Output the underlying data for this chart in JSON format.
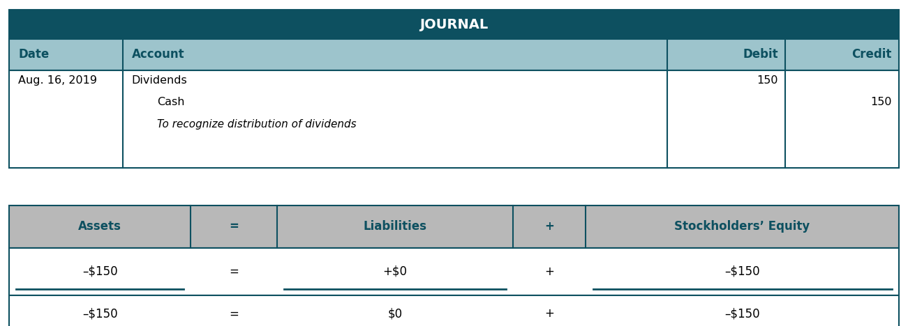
{
  "title": "JOURNAL",
  "title_bg": "#0d5060",
  "title_color": "#ffffff",
  "header_bg": "#9dc4cc",
  "header_color": "#0d5060",
  "row_bg": "#ffffff",
  "border_color": "#0d5060",
  "header_labels": [
    "Date",
    "Account",
    "Debit",
    "Credit"
  ],
  "date": "Aug. 16, 2019",
  "debit": "150",
  "credit": "150",
  "eq_header_bg": "#b8b8b8",
  "eq_header_color": "#0d5060",
  "eq_headers": [
    "Assets",
    "=",
    "Liabilities",
    "+",
    "Stockholders’ Equity"
  ],
  "eq_row1": [
    "–$150",
    "=",
    "+$0",
    "+",
    "–$150"
  ],
  "eq_row2": [
    "–$150",
    "=",
    "$0",
    "+",
    "–$150"
  ],
  "fig_width": 13.01,
  "fig_height": 4.68,
  "dpi": 100,
  "jcol": [
    0.01,
    0.135,
    0.735,
    0.865,
    0.99
  ],
  "ecol": [
    0.01,
    0.21,
    0.305,
    0.565,
    0.645,
    0.99
  ]
}
